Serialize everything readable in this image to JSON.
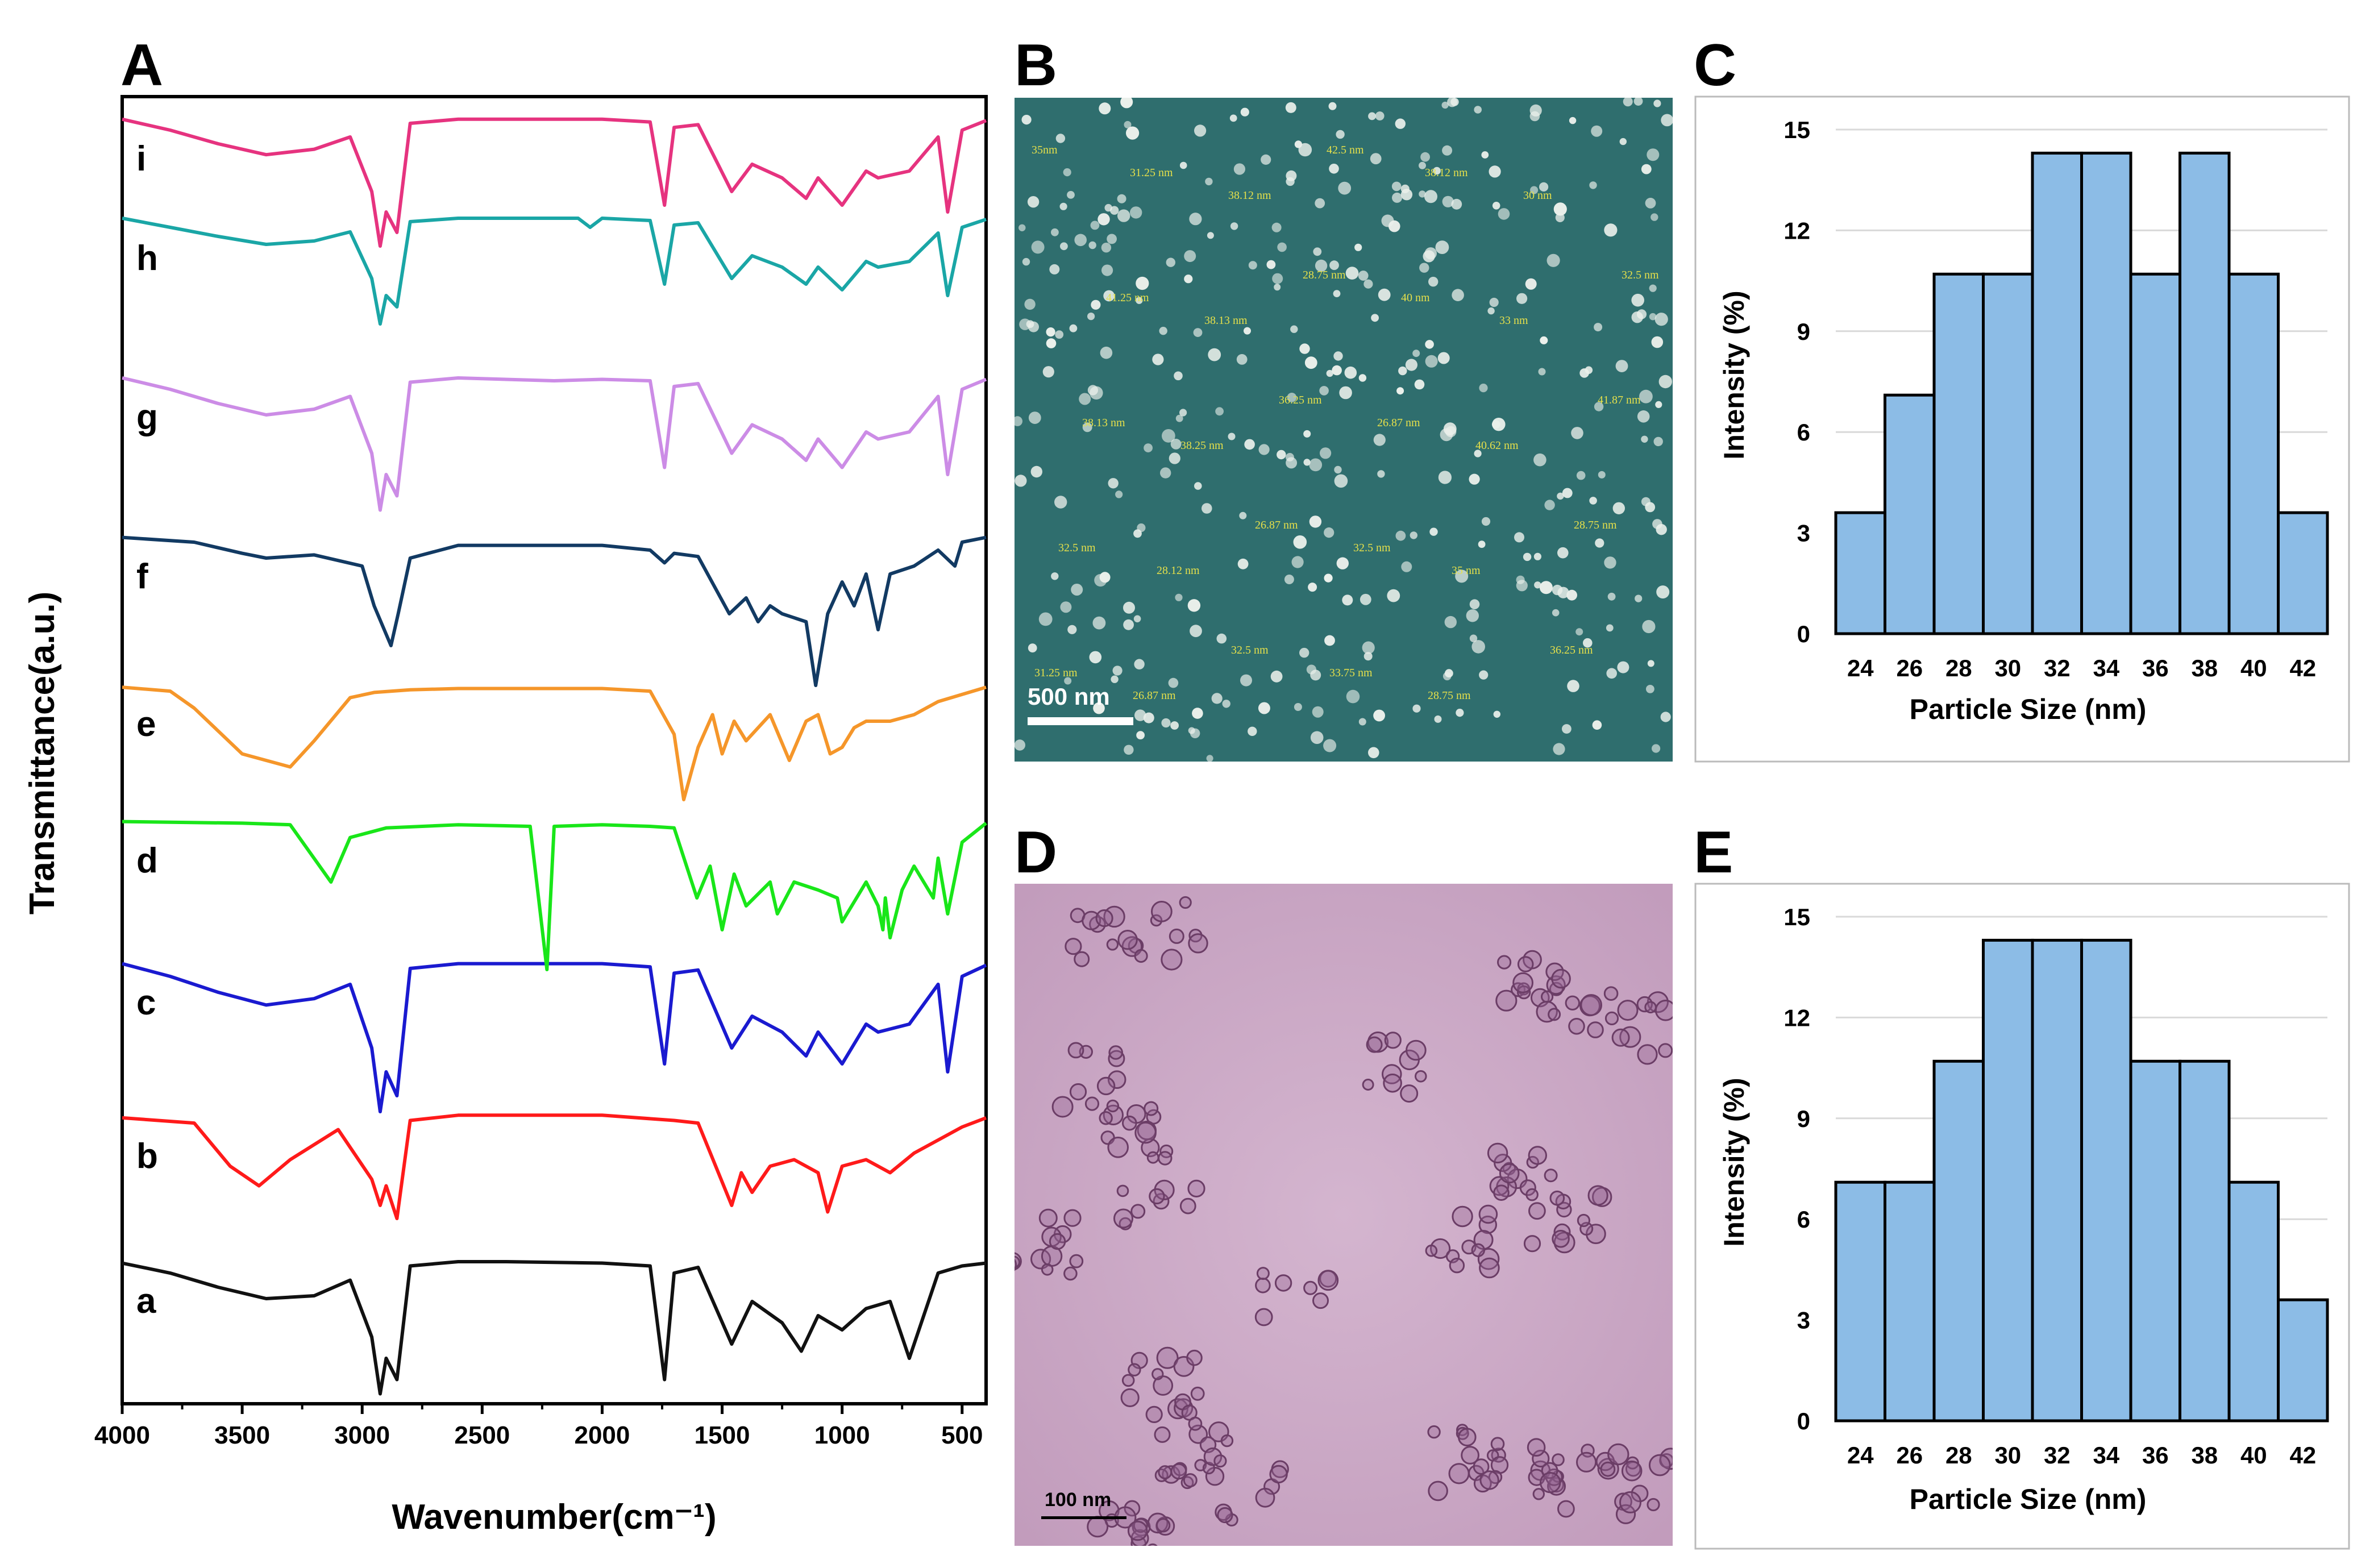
{
  "figure": {
    "panels": {
      "A": "A",
      "B": "B",
      "C": "C",
      "D": "D",
      "E": "E"
    }
  },
  "micrographs": {
    "sem": {
      "scale_label": "500 nm",
      "particle_labels": [
        "35nm",
        "31.25 nm",
        "38.12 nm",
        "42.5 nm",
        "38.12 nm",
        "30 nm",
        "32.5 nm",
        "41.25 nm",
        "38.13 nm",
        "28.75 nm",
        "40 nm",
        "33 nm",
        "41.87 nm",
        "38.13 nm",
        "38.25 nm",
        "36.25 nm",
        "26.87 nm",
        "40.62 nm",
        "28.75 nm",
        "32.5 nm",
        "28.12 nm",
        "26.87 nm",
        "32.5 nm",
        "35 nm",
        "36.25 nm",
        "31.25 nm",
        "26.87 nm",
        "32.5 nm",
        "33.75 nm",
        "28.75 nm"
      ]
    },
    "tem": {
      "scale_label": "100 nm"
    }
  },
  "colors": {
    "a": "#111111",
    "b": "#ff1a1a",
    "c": "#1a1ad0",
    "d": "#19e619",
    "e": "#f5962a",
    "f": "#123a63",
    "g": "#cc8ce6",
    "h": "#1aa6a6",
    "i": "#e6337f",
    "bar_fill": "#8cbce6",
    "sem_bg": "#2f6e6e",
    "tem_bg": "#c9a4c4"
  },
  "chart_data": [
    {
      "type": "line",
      "panel": "A",
      "title": "",
      "xlabel": "Wavenumber(cm⁻¹)",
      "ylabel": "Transmittance(a.u.)",
      "xlim": [
        4000,
        400
      ],
      "x_ticks": [
        "4000",
        "3500",
        "3000",
        "2500",
        "2000",
        "1500",
        "1000",
        "500"
      ],
      "grid": false,
      "series": [
        {
          "name": "a",
          "baseline": 0.96,
          "depth": 0.8,
          "x": [
            4000,
            3800,
            3600,
            3400,
            3200,
            3050,
            2960,
            2925,
            2900,
            2855,
            2800,
            2600,
            2400,
            2000,
            1800,
            1740,
            1700,
            1600,
            1460,
            1375,
            1250,
            1170,
            1100,
            1000,
            900,
            800,
            720,
            600,
            500,
            400
          ],
          "t": [
            0.97,
            0.9,
            0.8,
            0.72,
            0.74,
            0.85,
            0.45,
            0.05,
            0.3,
            0.15,
            0.95,
            0.98,
            0.98,
            0.97,
            0.95,
            0.15,
            0.9,
            0.94,
            0.4,
            0.7,
            0.55,
            0.35,
            0.6,
            0.5,
            0.65,
            0.7,
            0.3,
            0.9,
            0.95,
            0.97
          ]
        },
        {
          "name": "b",
          "baseline": 0.97,
          "depth": 0.9,
          "x": [
            4000,
            3700,
            3550,
            3430,
            3300,
            3100,
            2960,
            2925,
            2900,
            2855,
            2800,
            2600,
            2000,
            1700,
            1600,
            1460,
            1420,
            1375,
            1300,
            1200,
            1100,
            1060,
            1000,
            900,
            800,
            700,
            600,
            500,
            400
          ],
          "t": [
            0.97,
            0.93,
            0.6,
            0.45,
            0.65,
            0.88,
            0.5,
            0.3,
            0.45,
            0.2,
            0.95,
            0.99,
            0.99,
            0.95,
            0.93,
            0.3,
            0.55,
            0.4,
            0.6,
            0.65,
            0.55,
            0.25,
            0.6,
            0.65,
            0.55,
            0.7,
            0.8,
            0.9,
            0.97
          ]
        },
        {
          "name": "c",
          "baseline": 0.97,
          "depth": 0.92,
          "x": [
            4000,
            3800,
            3600,
            3400,
            3200,
            3050,
            2960,
            2925,
            2900,
            2855,
            2800,
            2600,
            2000,
            1800,
            1740,
            1700,
            1600,
            1460,
            1375,
            1250,
            1150,
            1100,
            1000,
            900,
            850,
            720,
            600,
            560,
            500,
            400
          ],
          "t": [
            0.98,
            0.9,
            0.8,
            0.72,
            0.76,
            0.85,
            0.45,
            0.05,
            0.3,
            0.15,
            0.95,
            0.98,
            0.98,
            0.96,
            0.35,
            0.92,
            0.94,
            0.45,
            0.65,
            0.55,
            0.4,
            0.55,
            0.35,
            0.6,
            0.55,
            0.6,
            0.85,
            0.3,
            0.9,
            0.97
          ]
        },
        {
          "name": "d",
          "baseline": 0.97,
          "depth": 1.4,
          "x": [
            4000,
            3500,
            3300,
            3130,
            3050,
            2900,
            2600,
            2300,
            2230,
            2200,
            2000,
            1800,
            1700,
            1605,
            1550,
            1500,
            1450,
            1400,
            1300,
            1270,
            1200,
            1100,
            1020,
            1000,
            900,
            850,
            830,
            820,
            800,
            750,
            700,
            620,
            600,
            560,
            500,
            400
          ],
          "t": [
            0.98,
            0.97,
            0.96,
            0.6,
            0.88,
            0.94,
            0.96,
            0.95,
            0.05,
            0.95,
            0.96,
            0.95,
            0.94,
            0.5,
            0.7,
            0.3,
            0.65,
            0.45,
            0.6,
            0.4,
            0.6,
            0.55,
            0.5,
            0.35,
            0.6,
            0.45,
            0.3,
            0.5,
            0.25,
            0.55,
            0.7,
            0.5,
            0.75,
            0.4,
            0.85,
            0.97
          ]
        },
        {
          "name": "e",
          "baseline": 0.97,
          "depth": 1.0,
          "x": [
            4000,
            3800,
            3700,
            3500,
            3300,
            3200,
            3050,
            2950,
            2800,
            2600,
            2000,
            1800,
            1700,
            1660,
            1600,
            1540,
            1500,
            1450,
            1400,
            1300,
            1220,
            1150,
            1100,
            1050,
            1000,
            950,
            900,
            800,
            700,
            600,
            400
          ],
          "t": [
            0.96,
            0.93,
            0.8,
            0.45,
            0.35,
            0.55,
            0.88,
            0.92,
            0.94,
            0.95,
            0.95,
            0.93,
            0.6,
            0.1,
            0.5,
            0.75,
            0.45,
            0.7,
            0.55,
            0.75,
            0.4,
            0.7,
            0.75,
            0.45,
            0.5,
            0.65,
            0.7,
            0.7,
            0.75,
            0.85,
            0.96
          ]
        },
        {
          "name": "f",
          "baseline": 0.97,
          "depth": 0.95,
          "x": [
            4000,
            3700,
            3500,
            3400,
            3200,
            3000,
            2950,
            2880,
            2850,
            2800,
            2600,
            2000,
            1800,
            1740,
            1700,
            1600,
            1470,
            1400,
            1350,
            1300,
            1250,
            1150,
            1110,
            1060,
            1000,
            950,
            900,
            850,
            800,
            700,
            600,
            530,
            500,
            400
          ],
          "t": [
            0.98,
            0.95,
            0.88,
            0.85,
            0.87,
            0.8,
            0.55,
            0.3,
            0.5,
            0.85,
            0.93,
            0.93,
            0.9,
            0.82,
            0.88,
            0.86,
            0.5,
            0.6,
            0.45,
            0.55,
            0.5,
            0.45,
            0.05,
            0.5,
            0.7,
            0.55,
            0.75,
            0.4,
            0.75,
            0.8,
            0.9,
            0.8,
            0.95,
            0.98
          ]
        },
        {
          "name": "g",
          "baseline": 0.97,
          "depth": 1.1,
          "x": [
            4000,
            3800,
            3600,
            3400,
            3200,
            3050,
            2960,
            2925,
            2900,
            2855,
            2800,
            2600,
            2200,
            2000,
            1800,
            1740,
            1700,
            1600,
            1460,
            1375,
            1250,
            1150,
            1100,
            1000,
            900,
            850,
            720,
            600,
            560,
            500,
            400
          ],
          "t": [
            0.98,
            0.9,
            0.8,
            0.72,
            0.76,
            0.85,
            0.45,
            0.05,
            0.3,
            0.15,
            0.95,
            0.98,
            0.96,
            0.97,
            0.96,
            0.35,
            0.92,
            0.94,
            0.45,
            0.65,
            0.55,
            0.4,
            0.55,
            0.35,
            0.6,
            0.55,
            0.6,
            0.85,
            0.3,
            0.9,
            0.97
          ]
        },
        {
          "name": "h",
          "baseline": 0.97,
          "depth": 0.85,
          "x": [
            4000,
            3800,
            3600,
            3400,
            3200,
            3050,
            2960,
            2925,
            2900,
            2855,
            2800,
            2600,
            2100,
            2050,
            2000,
            1800,
            1740,
            1700,
            1600,
            1460,
            1375,
            1250,
            1150,
            1100,
            1000,
            900,
            850,
            720,
            600,
            560,
            500,
            400
          ],
          "t": [
            0.98,
            0.9,
            0.82,
            0.75,
            0.78,
            0.86,
            0.45,
            0.05,
            0.3,
            0.2,
            0.95,
            0.98,
            0.98,
            0.9,
            0.98,
            0.96,
            0.4,
            0.92,
            0.94,
            0.45,
            0.65,
            0.55,
            0.4,
            0.55,
            0.35,
            0.6,
            0.55,
            0.6,
            0.85,
            0.3,
            0.9,
            0.97
          ]
        },
        {
          "name": "i",
          "baseline": 0.97,
          "depth": 0.78,
          "x": [
            4000,
            3800,
            3600,
            3400,
            3200,
            3050,
            2960,
            2925,
            2900,
            2855,
            2800,
            2600,
            2000,
            1800,
            1740,
            1700,
            1600,
            1460,
            1375,
            1250,
            1150,
            1100,
            1000,
            900,
            850,
            720,
            600,
            560,
            500,
            400
          ],
          "t": [
            0.98,
            0.9,
            0.8,
            0.72,
            0.76,
            0.85,
            0.45,
            0.05,
            0.3,
            0.15,
            0.95,
            0.98,
            0.98,
            0.96,
            0.35,
            0.92,
            0.94,
            0.45,
            0.65,
            0.55,
            0.4,
            0.55,
            0.35,
            0.6,
            0.55,
            0.6,
            0.85,
            0.3,
            0.9,
            0.97
          ]
        }
      ]
    },
    {
      "type": "bar",
      "panel": "C",
      "title": "",
      "xlabel": "Particle Size (nm)",
      "ylabel": "Intensity (%)",
      "categories": [
        "24",
        "26",
        "28",
        "30",
        "32",
        "34",
        "36",
        "38",
        "40",
        "42"
      ],
      "values": [
        3.6,
        7.1,
        10.7,
        10.7,
        14.3,
        14.3,
        10.7,
        14.3,
        10.7,
        3.6
      ],
      "ylim": [
        0,
        15
      ],
      "y_ticks": [
        "0",
        "3",
        "6",
        "9",
        "12",
        "15"
      ],
      "grid": true
    },
    {
      "type": "bar",
      "panel": "E",
      "title": "",
      "xlabel": "Particle Size (nm)",
      "ylabel": "Intensity (%)",
      "categories": [
        "24",
        "26",
        "28",
        "30",
        "32",
        "34",
        "36",
        "38",
        "40",
        "42"
      ],
      "values": [
        7.1,
        7.1,
        10.7,
        14.3,
        14.3,
        14.3,
        10.7,
        10.7,
        7.1,
        3.6
      ],
      "ylim": [
        0,
        15
      ],
      "y_ticks": [
        "0",
        "3",
        "6",
        "9",
        "12",
        "15"
      ],
      "grid": true
    }
  ]
}
